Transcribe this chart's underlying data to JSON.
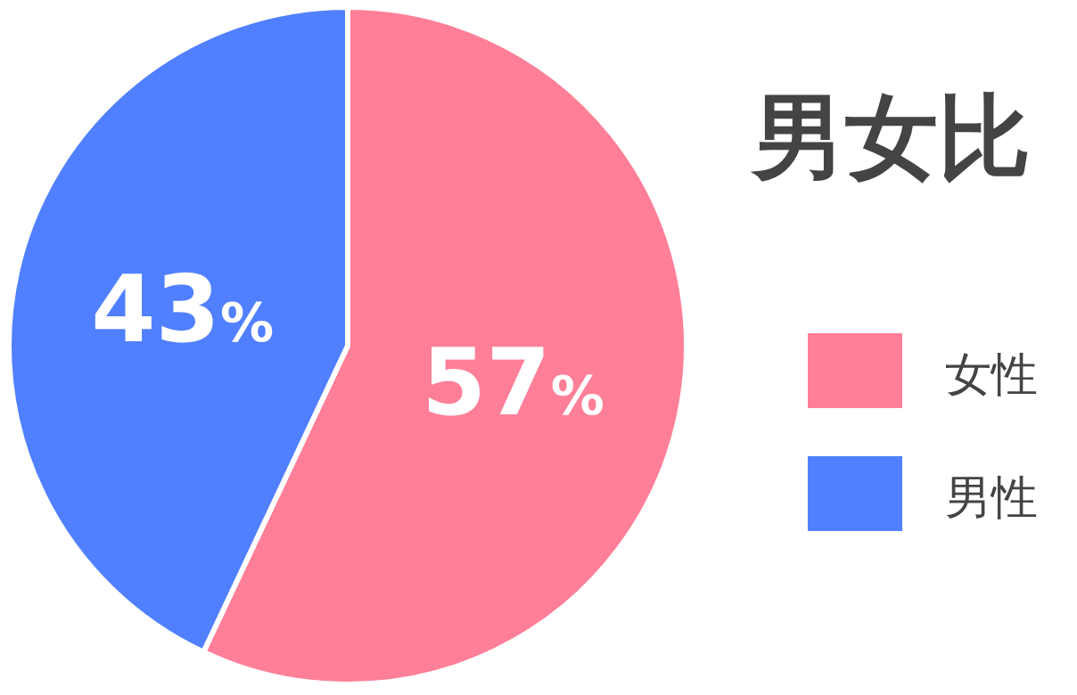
{
  "chart_data": {
    "type": "pie",
    "title": "男女比",
    "categories": [
      "女性",
      "男性"
    ],
    "values": [
      57,
      43
    ],
    "colors": [
      "#ff7f98",
      "#5080ff"
    ],
    "value_labels": [
      "57%",
      "43%"
    ],
    "legend": "right"
  }
}
